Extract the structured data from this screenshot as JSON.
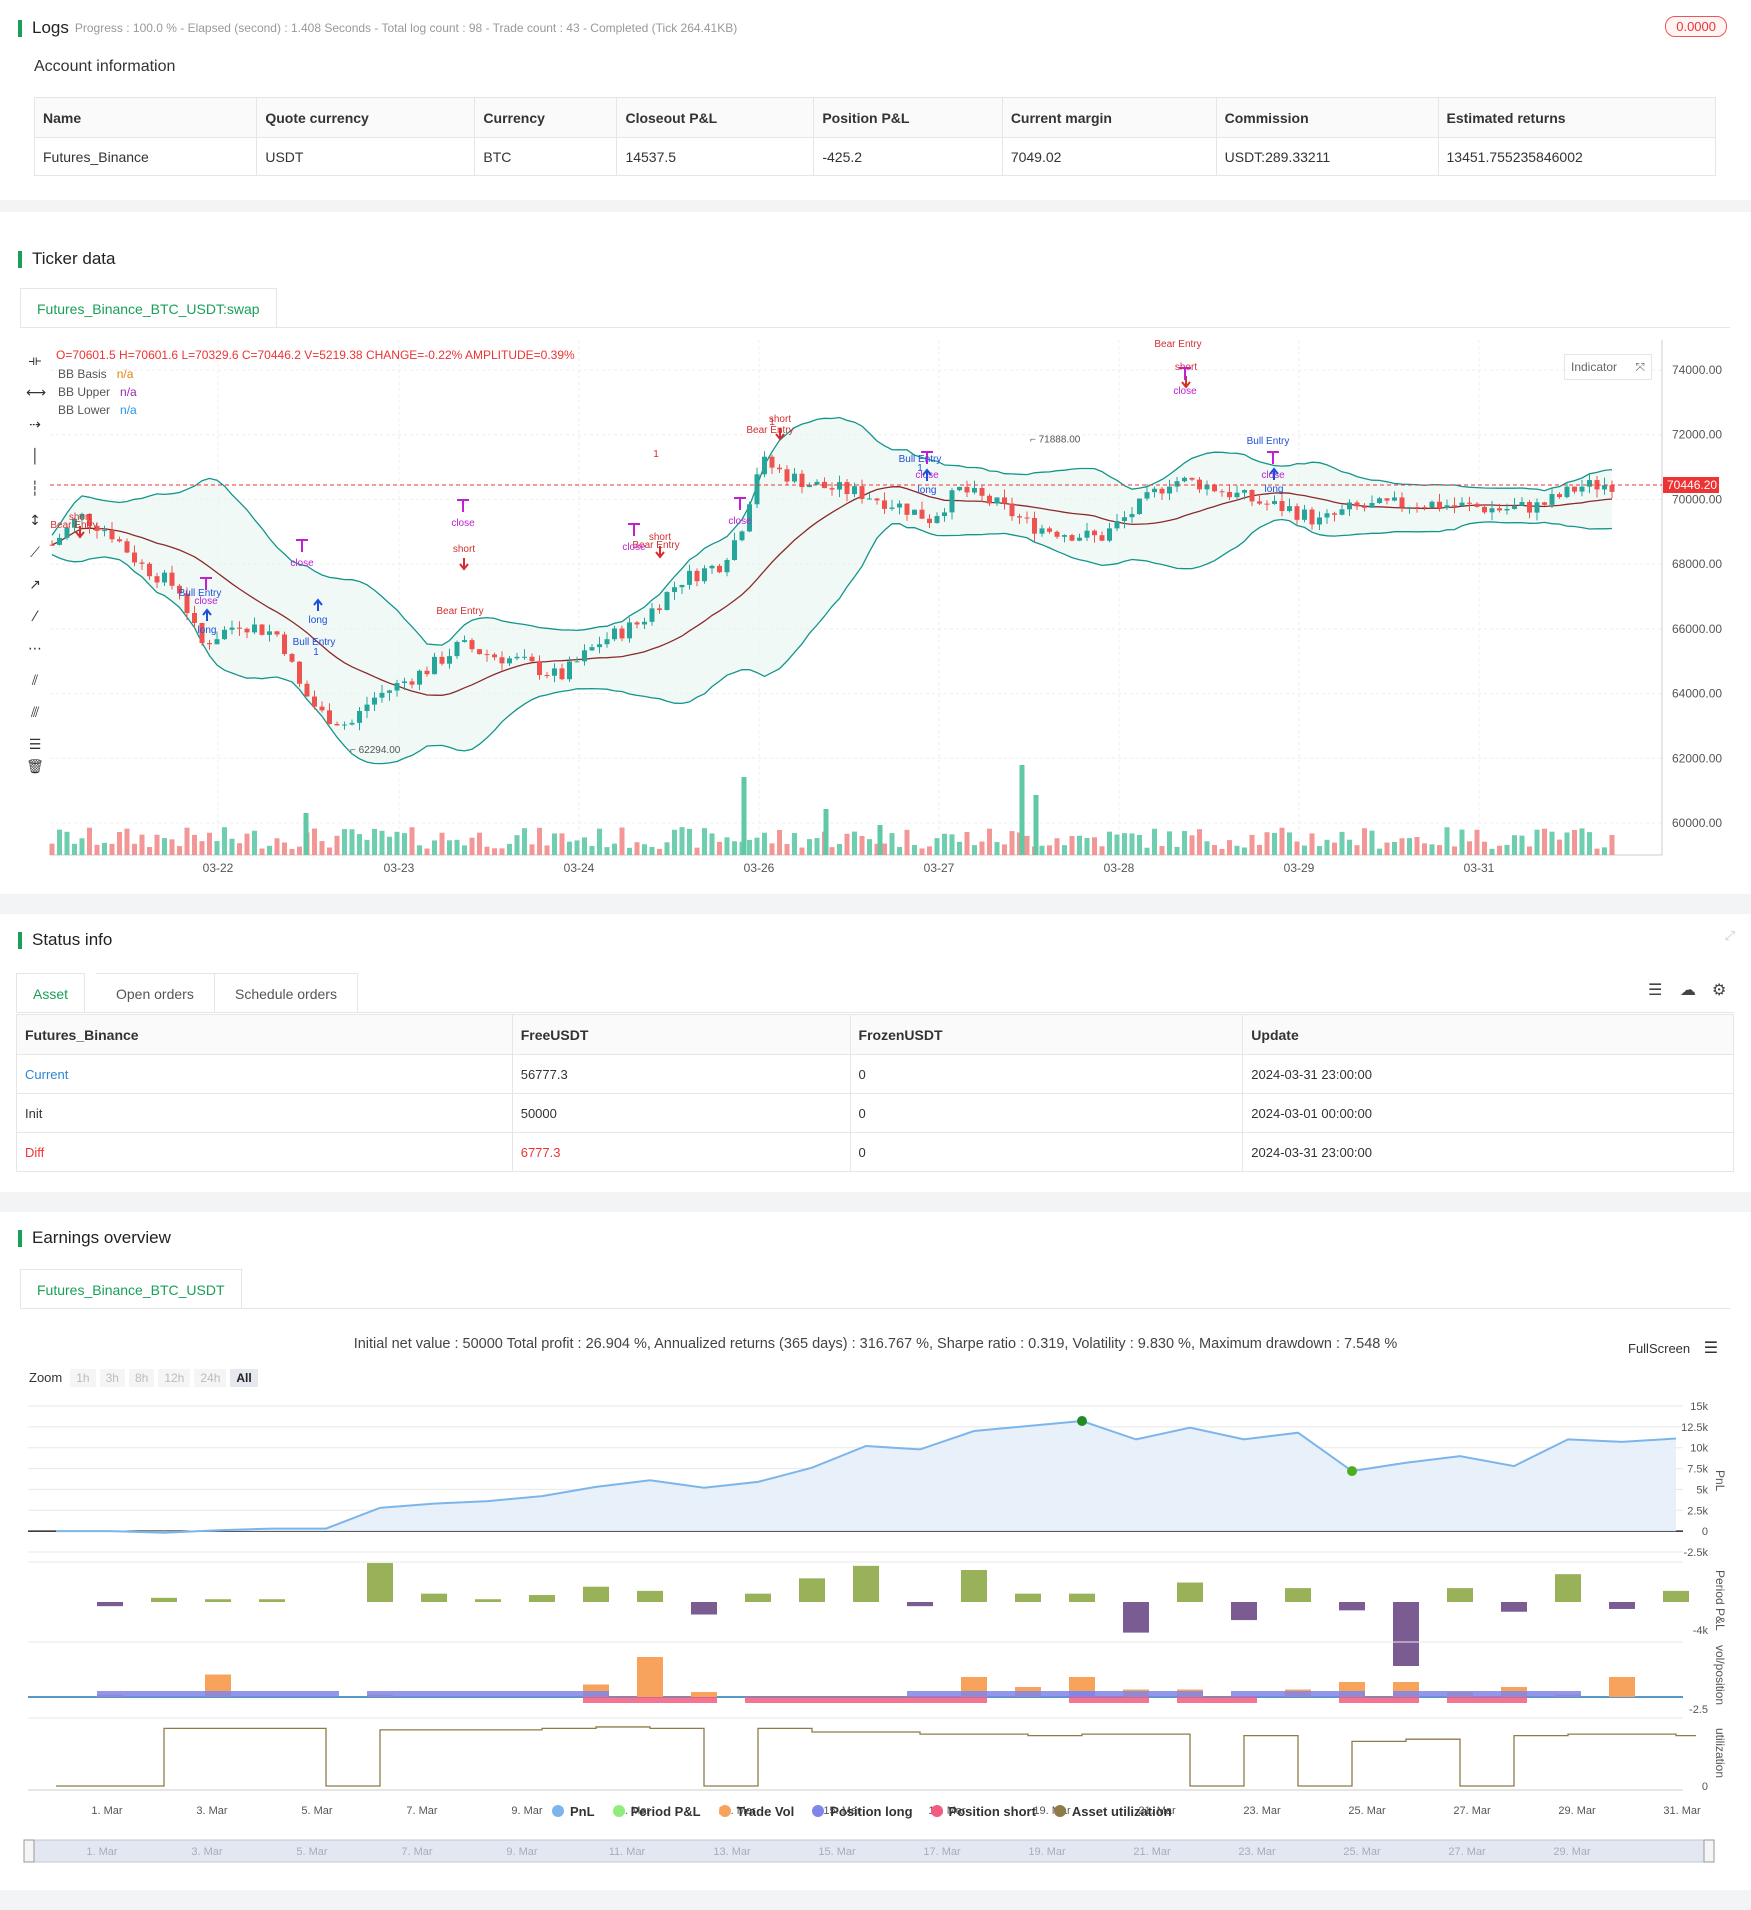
{
  "logs": {
    "title": "Logs",
    "meta": "Progress : 100.0 % - Elapsed (second) : 1.408  Seconds - Total log count : 98 - Trade count : 43 - Completed (Tick 264.41KB)",
    "badge": "0.0000"
  },
  "account": {
    "title": "Account information",
    "headers": [
      "Name",
      "Quote currency",
      "Currency",
      "Closeout P&L",
      "Position P&L",
      "Current margin",
      "Commission",
      "Estimated returns"
    ],
    "row": [
      "Futures_Binance",
      "USDT",
      "BTC",
      "14537.5",
      "-425.2",
      "7049.02",
      "USDT:289.33211",
      "13451.755235846002"
    ]
  },
  "ticker": {
    "title": "Ticker data",
    "tab": "Futures_Binance_BTC_USDT:swap",
    "ohlc": "O=70601.5 H=70601.6 L=70329.6 C=70446.2 V=5219.38 CHANGE=-0.22% AMPLITUDE=0.39%",
    "legend": [
      {
        "name": "BB Basis",
        "value": "n/a",
        "color": "#e8820c"
      },
      {
        "name": "BB Upper",
        "value": "n/a",
        "color": "#9c27b0"
      },
      {
        "name": "BB Lower",
        "value": "n/a",
        "color": "#2196f3"
      }
    ],
    "indicator_btn": "Indicator",
    "price_tag": "70446.20",
    "high_label": "71888.00",
    "low_label": "62294.00",
    "y_ticks": [
      "74000.00",
      "72000.00",
      "70000.00",
      "68000.00",
      "66000.00",
      "64000.00",
      "62000.00",
      "60000.00"
    ],
    "x_ticks": [
      "03-22",
      "03-23",
      "03-24",
      "03-26",
      "03-27",
      "03-28",
      "03-29",
      "03-31"
    ],
    "signals": {
      "short": "short",
      "long": "long",
      "close": "close",
      "bear_entry": "Bear Entry",
      "bull_entry": "Bull Entry",
      "one": "1"
    },
    "colors": {
      "up": "#26a69a",
      "down": "#ef5350",
      "band": "#13958a",
      "basis": "#8b2a2a"
    }
  },
  "status": {
    "title": "Status info",
    "tabs": [
      "Asset",
      "Open orders",
      "Schedule orders"
    ],
    "headers": [
      "Futures_Binance",
      "FreeUSDT",
      "FrozenUSDT",
      "Update"
    ],
    "rows": [
      [
        "Current",
        "56777.3",
        "0",
        "2024-03-31 23:00:00"
      ],
      [
        "Init",
        "50000",
        "0",
        "2024-03-01 00:00:00"
      ],
      [
        "Diff",
        "6777.3",
        "0",
        "2024-03-31 23:00:00"
      ]
    ]
  },
  "earnings": {
    "title": "Earnings overview",
    "tab": "Futures_Binance_BTC_USDT",
    "stats": "Initial net value : 50000 Total profit : 26.904 %, Annualized returns (365 days) : 316.767 %, Sharpe ratio : 0.319, Volatility : 9.830 %, Maximum drawdown : 7.548 %",
    "fullscreen": "FullScreen",
    "zoom_label": "Zoom",
    "zoom_buttons": [
      "1h",
      "3h",
      "8h",
      "12h",
      "24h",
      "All"
    ],
    "pnl_ticks": [
      "15k",
      "12.5k",
      "10k",
      "7.5k",
      "5k",
      "2.5k",
      "0",
      "-2.5k"
    ],
    "period_ticks": [
      "-4k"
    ],
    "vol_ticks": [
      "-2.5"
    ],
    "util_ticks": [
      "0"
    ],
    "axis_titles": [
      "PnL",
      "Period P&L",
      "vol/position",
      "utilization"
    ],
    "x_ticks": [
      "1. Mar",
      "3. Mar",
      "5. Mar",
      "7. Mar",
      "9. Mar",
      "11. Mar",
      "13. Mar",
      "15. Mar",
      "17. Mar",
      "19. Mar",
      "21. Mar",
      "23. Mar",
      "25. Mar",
      "27. Mar",
      "29. Mar",
      "31. Mar"
    ],
    "nav_ticks": [
      "1. Mar",
      "3. Mar",
      "5. Mar",
      "7. Mar",
      "9. Mar",
      "11. Mar",
      "13. Mar",
      "15. Mar",
      "17. Mar",
      "19. Mar",
      "21. Mar",
      "23. Mar",
      "25. Mar",
      "27. Mar",
      "29. Mar"
    ],
    "legend": [
      {
        "name": "PnL",
        "color": "#7cb5ec"
      },
      {
        "name": "Period P&L",
        "color": "#90ed7d"
      },
      {
        "name": "Trade Vol",
        "color": "#f7a35c"
      },
      {
        "name": "Position long",
        "color": "#8085e9"
      },
      {
        "name": "Position short",
        "color": "#f15c80"
      },
      {
        "name": "Asset utilization",
        "color": "#8d7b4a"
      }
    ],
    "pnl_series": [
      0,
      0,
      -200,
      100,
      300,
      300,
      2800,
      3300,
      3600,
      4200,
      5300,
      6100,
      5200,
      5900,
      7600,
      10200,
      9800,
      12000,
      12600,
      13200,
      11000,
      12400,
      11000,
      11800,
      7200,
      8200,
      9000,
      7800,
      11000,
      10700,
      11100
    ],
    "period_pnl": [
      0,
      -300,
      300,
      200,
      200,
      0,
      2800,
      600,
      200,
      500,
      1100,
      800,
      -900,
      600,
      1700,
      2600,
      -300,
      2300,
      600,
      600,
      -2200,
      1400,
      -1300,
      1000,
      -600,
      -4600,
      1000,
      -700,
      2000,
      -500,
      800
    ],
    "utilization": [
      0,
      0,
      0.8,
      0.8,
      0.8,
      0,
      0.78,
      0.78,
      0.78,
      0.8,
      0.82,
      0.8,
      0,
      0.8,
      0.75,
      0.75,
      0.72,
      0.72,
      0.7,
      0.72,
      0.72,
      0,
      0.7,
      0,
      0.62,
      0.65,
      0,
      0.7,
      0.72,
      0.72,
      0.7
    ]
  }
}
